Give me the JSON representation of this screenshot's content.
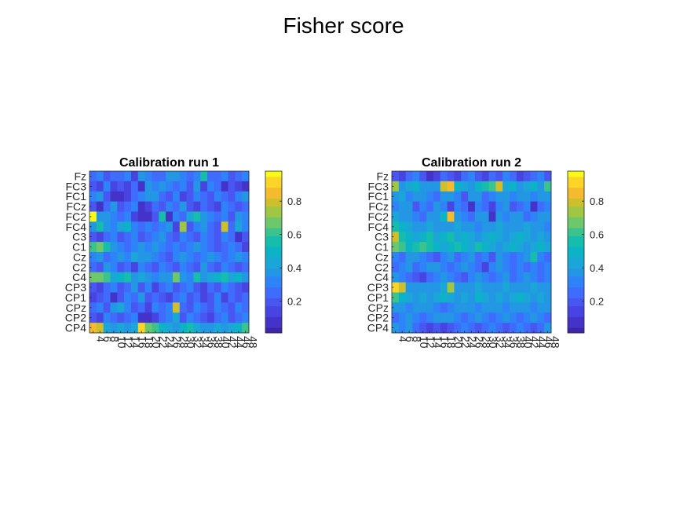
{
  "figure": {
    "suptitle": "Fisher score"
  },
  "colormap": [
    "#3e26a8",
    "#4433c9",
    "#4744e2",
    "#4857f1",
    "#3f6cfc",
    "#2f83f8",
    "#2396e4",
    "#1ba6d8",
    "#0cb2c5",
    "#16bcac",
    "#3cc38d",
    "#6cc86b",
    "#9fc743",
    "#cebf2c",
    "#f4bb2f",
    "#fbd427",
    "#f9fb15"
  ],
  "chart_data": [
    {
      "type": "heatmap",
      "title": "Calibration run 1",
      "ylabels": [
        "Fz",
        "FC3",
        "FC1",
        "FCz",
        "FC2",
        "FC4",
        "C3",
        "C1",
        "Cz",
        "C2",
        "C4",
        "CP3",
        "CP1",
        "CPz",
        "CP2",
        "CP4"
      ],
      "xlabels": [
        "4",
        "6",
        "8",
        "10",
        "12",
        "14",
        "16",
        "18",
        "20",
        "22",
        "24",
        "26",
        "28",
        "30",
        "32",
        "34",
        "36",
        "38",
        "40",
        "42",
        "44",
        "46",
        "48"
      ],
      "colorbar": {
        "ticks": [
          "0.2",
          "0.4",
          "0.6",
          "0.8"
        ],
        "range": [
          0.01,
          0.98
        ]
      },
      "values": [
        [
          0.25,
          0.3,
          0.2,
          0.25,
          0.28,
          0.3,
          0.15,
          0.35,
          0.3,
          0.25,
          0.28,
          0.35,
          0.4,
          0.3,
          0.25,
          0.3,
          0.55,
          0.28,
          0.25,
          0.3,
          0.2,
          0.25,
          0.3
        ],
        [
          0.2,
          0.15,
          0.3,
          0.12,
          0.2,
          0.15,
          0.25,
          0.08,
          0.35,
          0.3,
          0.35,
          0.3,
          0.25,
          0.3,
          0.2,
          0.35,
          0.15,
          0.3,
          0.25,
          0.1,
          0.2,
          0.15,
          0.1
        ],
        [
          0.3,
          0.35,
          0.2,
          0.1,
          0.08,
          0.12,
          0.25,
          0.3,
          0.35,
          0.4,
          0.25,
          0.2,
          0.3,
          0.15,
          0.2,
          0.3,
          0.25,
          0.2,
          0.3,
          0.25,
          0.2,
          0.3,
          0.35
        ],
        [
          0.2,
          0.1,
          0.25,
          0.35,
          0.2,
          0.25,
          0.3,
          0.1,
          0.15,
          0.25,
          0.2,
          0.3,
          0.25,
          0.35,
          0.2,
          0.15,
          0.25,
          0.2,
          0.15,
          0.3,
          0.25,
          0.2,
          0.25
        ],
        [
          0.95,
          0.35,
          0.4,
          0.3,
          0.25,
          0.3,
          0.15,
          0.1,
          0.1,
          0.2,
          0.55,
          0.1,
          0.3,
          0.25,
          0.45,
          0.55,
          0.35,
          0.3,
          0.25,
          0.3,
          0.2,
          0.35,
          0.3
        ],
        [
          0.35,
          0.55,
          0.4,
          0.3,
          0.45,
          0.5,
          0.3,
          0.25,
          0.3,
          0.25,
          0.3,
          0.35,
          0.15,
          0.75,
          0.2,
          0.3,
          0.4,
          0.25,
          0.2,
          0.8,
          0.25,
          0.45,
          0.3
        ],
        [
          0.2,
          0.15,
          0.25,
          0.3,
          0.2,
          0.25,
          0.3,
          0.2,
          0.25,
          0.3,
          0.35,
          0.25,
          0.2,
          0.3,
          0.25,
          0.2,
          0.3,
          0.25,
          0.2,
          0.3,
          0.25,
          0.1,
          0.2
        ],
        [
          0.6,
          0.65,
          0.55,
          0.35,
          0.3,
          0.25,
          0.3,
          0.35,
          0.3,
          0.35,
          0.3,
          0.25,
          0.3,
          0.25,
          0.3,
          0.35,
          0.3,
          0.25,
          0.2,
          0.25,
          0.3,
          0.25,
          0.15
        ],
        [
          0.3,
          0.35,
          0.25,
          0.3,
          0.35,
          0.3,
          0.45,
          0.35,
          0.4,
          0.3,
          0.25,
          0.2,
          0.3,
          0.35,
          0.3,
          0.25,
          0.3,
          0.35,
          0.3,
          0.25,
          0.3,
          0.35,
          0.3
        ],
        [
          0.25,
          0.2,
          0.35,
          0.3,
          0.2,
          0.25,
          0.15,
          0.3,
          0.25,
          0.2,
          0.3,
          0.25,
          0.2,
          0.3,
          0.25,
          0.2,
          0.35,
          0.25,
          0.2,
          0.3,
          0.25,
          0.2,
          0.25
        ],
        [
          0.7,
          0.65,
          0.6,
          0.45,
          0.5,
          0.55,
          0.4,
          0.45,
          0.35,
          0.3,
          0.4,
          0.35,
          0.7,
          0.35,
          0.3,
          0.55,
          0.4,
          0.45,
          0.5,
          0.55,
          0.45,
          0.5,
          0.4
        ],
        [
          0.2,
          0.15,
          0.25,
          0.3,
          0.2,
          0.25,
          0.35,
          0.2,
          0.3,
          0.15,
          0.25,
          0.3,
          0.2,
          0.25,
          0.3,
          0.2,
          0.15,
          0.25,
          0.2,
          0.3,
          0.25,
          0.2,
          0.15
        ],
        [
          0.15,
          0.2,
          0.25,
          0.1,
          0.2,
          0.3,
          0.25,
          0.35,
          0.2,
          0.25,
          0.2,
          0.15,
          0.25,
          0.3,
          0.2,
          0.25,
          0.15,
          0.2,
          0.3,
          0.15,
          0.25,
          0.2,
          0.25
        ],
        [
          0.25,
          0.3,
          0.2,
          0.35,
          0.45,
          0.3,
          0.2,
          0.25,
          0.15,
          0.3,
          0.25,
          0.3,
          0.8,
          0.25,
          0.2,
          0.3,
          0.25,
          0.2,
          0.3,
          0.25,
          0.2,
          0.3,
          0.25
        ],
        [
          0.2,
          0.15,
          0.3,
          0.25,
          0.2,
          0.25,
          0.3,
          0.1,
          0.08,
          0.15,
          0.25,
          0.3,
          0.45,
          0.2,
          0.3,
          0.25,
          0.2,
          0.15,
          0.25,
          0.3,
          0.2,
          0.25,
          0.3
        ],
        [
          0.85,
          0.8,
          0.45,
          0.4,
          0.45,
          0.4,
          0.45,
          0.9,
          0.65,
          0.6,
          0.5,
          0.45,
          0.4,
          0.5,
          0.55,
          0.45,
          0.4,
          0.35,
          0.45,
          0.4,
          0.45,
          0.5,
          0.6
        ]
      ]
    },
    {
      "type": "heatmap",
      "title": "Calibration run 2",
      "ylabels": [
        "Fz",
        "FC3",
        "FC1",
        "FCz",
        "FC2",
        "FC4",
        "C3",
        "C1",
        "Cz",
        "C2",
        "C4",
        "CP3",
        "CP1",
        "CPz",
        "CP2",
        "CP4"
      ],
      "xlabels": [
        "4",
        "6",
        "8",
        "10",
        "12",
        "14",
        "16",
        "18",
        "20",
        "22",
        "24",
        "26",
        "28",
        "30",
        "32",
        "34",
        "36",
        "38",
        "40",
        "42",
        "44",
        "46",
        "48"
      ],
      "colorbar": {
        "ticks": [
          "0.2",
          "0.4",
          "0.6",
          "0.8"
        ],
        "range": [
          0.01,
          0.98
        ]
      },
      "values": [
        [
          0.2,
          0.15,
          0.25,
          0.3,
          0.2,
          0.1,
          0.15,
          0.25,
          0.2,
          0.15,
          0.25,
          0.3,
          0.2,
          0.15,
          0.25,
          0.2,
          0.3,
          0.25,
          0.15,
          0.2,
          0.25,
          0.3,
          0.2
        ],
        [
          0.75,
          0.4,
          0.45,
          0.5,
          0.4,
          0.35,
          0.4,
          0.8,
          0.85,
          0.5,
          0.45,
          0.4,
          0.5,
          0.55,
          0.6,
          0.8,
          0.45,
          0.5,
          0.4,
          0.45,
          0.5,
          0.4,
          0.6
        ],
        [
          0.4,
          0.45,
          0.3,
          0.35,
          0.4,
          0.3,
          0.25,
          0.35,
          0.4,
          0.3,
          0.2,
          0.35,
          0.4,
          0.25,
          0.3,
          0.35,
          0.4,
          0.3,
          0.35,
          0.4,
          0.3,
          0.35,
          0.4
        ],
        [
          0.3,
          0.35,
          0.4,
          0.2,
          0.3,
          0.25,
          0.35,
          0.3,
          0.15,
          0.3,
          0.25,
          0.1,
          0.3,
          0.25,
          0.15,
          0.3,
          0.35,
          0.2,
          0.25,
          0.3,
          0.1,
          0.25,
          0.3
        ],
        [
          0.45,
          0.4,
          0.35,
          0.3,
          0.25,
          0.4,
          0.35,
          0.5,
          0.85,
          0.4,
          0.3,
          0.25,
          0.35,
          0.4,
          0.1,
          0.35,
          0.3,
          0.4,
          0.35,
          0.25,
          0.3,
          0.35,
          0.4
        ],
        [
          0.55,
          0.5,
          0.45,
          0.4,
          0.35,
          0.45,
          0.4,
          0.35,
          0.4,
          0.45,
          0.4,
          0.35,
          0.3,
          0.4,
          0.35,
          0.45,
          0.4,
          0.35,
          0.4,
          0.45,
          0.4,
          0.35,
          0.3
        ],
        [
          0.8,
          0.55,
          0.5,
          0.45,
          0.5,
          0.55,
          0.45,
          0.5,
          0.55,
          0.45,
          0.5,
          0.45,
          0.4,
          0.45,
          0.5,
          0.45,
          0.4,
          0.45,
          0.5,
          0.45,
          0.4,
          0.45,
          0.4
        ],
        [
          0.65,
          0.6,
          0.5,
          0.55,
          0.6,
          0.55,
          0.5,
          0.45,
          0.5,
          0.55,
          0.5,
          0.45,
          0.55,
          0.5,
          0.45,
          0.4,
          0.45,
          0.5,
          0.45,
          0.4,
          0.45,
          0.5,
          0.45
        ],
        [
          0.3,
          0.25,
          0.35,
          0.4,
          0.3,
          0.25,
          0.2,
          0.3,
          0.35,
          0.25,
          0.3,
          0.35,
          0.25,
          0.3,
          0.2,
          0.35,
          0.3,
          0.25,
          0.3,
          0.35,
          0.55,
          0.3,
          0.25
        ],
        [
          0.25,
          0.3,
          0.35,
          0.25,
          0.3,
          0.35,
          0.4,
          0.3,
          0.25,
          0.3,
          0.35,
          0.3,
          0.25,
          0.15,
          0.3,
          0.35,
          0.3,
          0.25,
          0.3,
          0.25,
          0.3,
          0.25,
          0.3
        ],
        [
          0.35,
          0.3,
          0.25,
          0.2,
          0.15,
          0.25,
          0.3,
          0.35,
          0.3,
          0.25,
          0.2,
          0.3,
          0.35,
          0.3,
          0.25,
          0.3,
          0.35,
          0.25,
          0.3,
          0.35,
          0.3,
          0.25,
          0.3
        ],
        [
          0.9,
          0.8,
          0.4,
          0.35,
          0.4,
          0.35,
          0.4,
          0.45,
          0.75,
          0.4,
          0.35,
          0.4,
          0.45,
          0.4,
          0.35,
          0.4,
          0.45,
          0.4,
          0.35,
          0.4,
          0.45,
          0.4,
          0.35
        ],
        [
          0.6,
          0.5,
          0.45,
          0.4,
          0.45,
          0.4,
          0.45,
          0.5,
          0.45,
          0.4,
          0.45,
          0.4,
          0.5,
          0.45,
          0.4,
          0.45,
          0.4,
          0.45,
          0.5,
          0.45,
          0.4,
          0.45,
          0.4
        ],
        [
          0.4,
          0.35,
          0.3,
          0.35,
          0.4,
          0.35,
          0.3,
          0.25,
          0.3,
          0.35,
          0.4,
          0.35,
          0.3,
          0.35,
          0.4,
          0.35,
          0.3,
          0.35,
          0.4,
          0.35,
          0.3,
          0.35,
          0.4
        ],
        [
          0.25,
          0.3,
          0.35,
          0.3,
          0.25,
          0.3,
          0.35,
          0.4,
          0.35,
          0.3,
          0.25,
          0.3,
          0.35,
          0.3,
          0.25,
          0.3,
          0.35,
          0.3,
          0.25,
          0.3,
          0.35,
          0.3,
          0.25
        ],
        [
          0.35,
          0.3,
          0.35,
          0.25,
          0.2,
          0.15,
          0.2,
          0.15,
          0.2,
          0.25,
          0.3,
          0.25,
          0.2,
          0.25,
          0.3,
          0.25,
          0.2,
          0.25,
          0.3,
          0.25,
          0.2,
          0.25,
          0.35
        ]
      ]
    }
  ]
}
